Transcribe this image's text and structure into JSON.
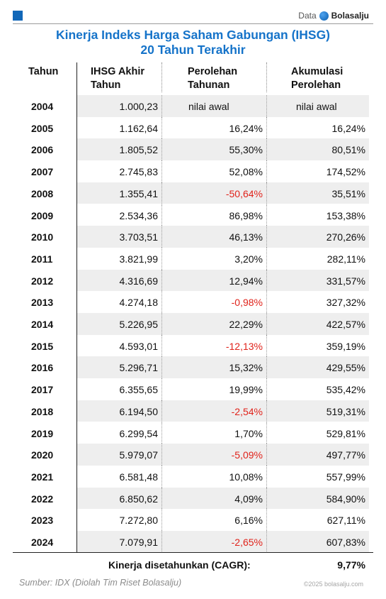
{
  "brand": {
    "prefix": "Data",
    "name": "Bolasalju"
  },
  "title": {
    "line1": "Kinerja Indeks Harga Saham Gabungan (IHSG)",
    "line2": "20 Tahun Terakhir"
  },
  "headers": {
    "year": "Tahun",
    "ihsg_1": "IHSG Akhir",
    "ihsg_2": "Tahun",
    "gain_1": "Perolehan",
    "gain_2": "Tahunan",
    "acc_1": "Akumulasi",
    "acc_2": "Perolehan"
  },
  "chart_data": {
    "type": "table",
    "title": "Kinerja Indeks Harga Saham Gabungan (IHSG) 20 Tahun Terakhir",
    "columns": [
      "Tahun",
      "IHSG Akhir Tahun",
      "Perolehan Tahunan",
      "Akumulasi Perolehan"
    ],
    "rows": [
      [
        "2004",
        "1.000,23",
        "nilai awal",
        "nilai awal"
      ],
      [
        "2005",
        "1.162,64",
        "16,24%",
        "16,24%"
      ],
      [
        "2006",
        "1.805,52",
        "55,30%",
        "80,51%"
      ],
      [
        "2007",
        "2.745,83",
        "52,08%",
        "174,52%"
      ],
      [
        "2008",
        "1.355,41",
        "-50,64%",
        "35,51%"
      ],
      [
        "2009",
        "2.534,36",
        "86,98%",
        "153,38%"
      ],
      [
        "2010",
        "3.703,51",
        "46,13%",
        "270,26%"
      ],
      [
        "2011",
        "3.821,99",
        "3,20%",
        "282,11%"
      ],
      [
        "2012",
        "4.316,69",
        "12,94%",
        "331,57%"
      ],
      [
        "2013",
        "4.274,18",
        "-0,98%",
        "327,32%"
      ],
      [
        "2014",
        "5.226,95",
        "22,29%",
        "422,57%"
      ],
      [
        "2015",
        "4.593,01",
        "-12,13%",
        "359,19%"
      ],
      [
        "2016",
        "5.296,71",
        "15,32%",
        "429,55%"
      ],
      [
        "2017",
        "6.355,65",
        "19,99%",
        "535,42%"
      ],
      [
        "2018",
        "6.194,50",
        "-2,54%",
        "519,31%"
      ],
      [
        "2019",
        "6.299,54",
        "1,70%",
        "529,81%"
      ],
      [
        "2020",
        "5.979,07",
        "-5,09%",
        "497,77%"
      ],
      [
        "2021",
        "6.581,48",
        "10,08%",
        "557,99%"
      ],
      [
        "2022",
        "6.850,62",
        "4,09%",
        "584,90%"
      ],
      [
        "2023",
        "7.272,80",
        "6,16%",
        "627,11%"
      ],
      [
        "2024",
        "7.079,91",
        "-2,65%",
        "607,83%"
      ]
    ],
    "negative_color": "#e0231b",
    "title_color": "#1573c9"
  },
  "cagr": {
    "label": "Kinerja disetahunkan (CAGR):",
    "value": "9,77%"
  },
  "source": "Sumber: IDX (Diolah Tim Riset Bolasalju)",
  "copyright": "©2025 bolasalju.com"
}
